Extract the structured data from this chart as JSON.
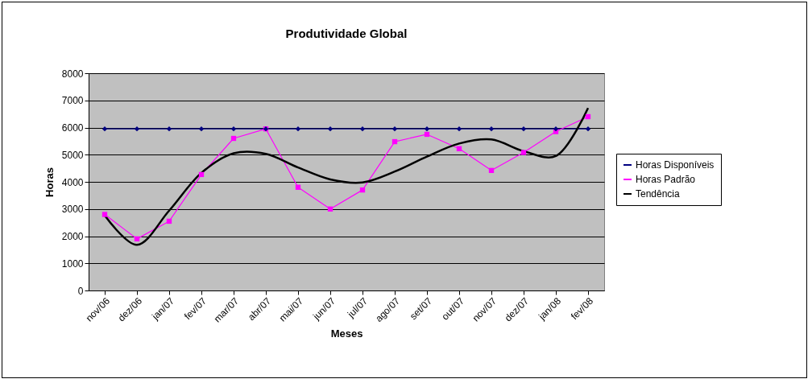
{
  "chart_data": {
    "type": "line",
    "title": "Produtividade Global",
    "xlabel": "Meses",
    "ylabel": "Horas",
    "categories": [
      "nov/06",
      "dez/06",
      "jan/07",
      "fev/07",
      "mar/07",
      "abr/07",
      "mai/07",
      "jun/07",
      "jul/07",
      "ago/07",
      "set/07",
      "out/07",
      "nov/07",
      "dez/07",
      "jan/08",
      "fev/08"
    ],
    "series": [
      {
        "name": "Horas Disponíveis",
        "color": "#000080",
        "marker": "diamond",
        "values": [
          5950,
          5950,
          5950,
          5950,
          5950,
          5950,
          5950,
          5950,
          5950,
          5950,
          5950,
          5950,
          5950,
          5950,
          5950,
          5950
        ]
      },
      {
        "name": "Horas Padrão",
        "color": "#ff00ff",
        "marker": "square",
        "values": [
          2800,
          1900,
          2550,
          4270,
          5600,
          5950,
          3800,
          3000,
          3700,
          5480,
          5750,
          5220,
          4420,
          5080,
          5850,
          6400
        ]
      },
      {
        "name": "Tendência",
        "color": "#000000",
        "marker": "none",
        "values": [
          2760,
          1680,
          2940,
          4330,
          5050,
          5030,
          4530,
          4090,
          3980,
          4380,
          4930,
          5410,
          5560,
          5130,
          4950,
          6720
        ]
      }
    ],
    "ylim": [
      0,
      8000
    ],
    "yticks": [
      0,
      1000,
      2000,
      3000,
      4000,
      5000,
      6000,
      7000,
      8000
    ],
    "grid": "y",
    "legend": "right"
  }
}
